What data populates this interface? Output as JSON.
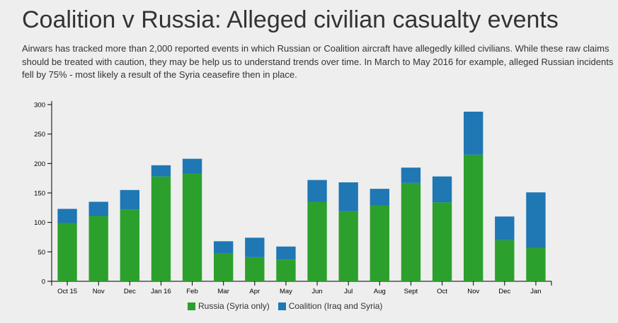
{
  "title": "Coalition v Russia: Alleged civilian casualty events",
  "subtitle": "Airwars has tracked more than 2,000 reported events in which Russian or Coalition aircraft have allegedly killed civilians. While these raw claims should be treated with caution, they may be help us to understand trends over time. In March to May 2016 for example, alleged Russian incidents fell by 75% - most likely a result of the Syria ceasefire then in place.",
  "colors": {
    "russia": "#2ca02c",
    "coalition": "#1f77b4"
  },
  "chart_data": {
    "type": "bar",
    "stacked": true,
    "categories": [
      "Oct 15",
      "Nov",
      "Dec",
      "Jan 16",
      "Feb",
      "Mar",
      "Apr",
      "May",
      "Jun",
      "Jul",
      "Aug",
      "Sept",
      "Oct",
      "Nov",
      "Dec",
      "Jan"
    ],
    "series": [
      {
        "name": "Russia (Syria only)",
        "values": [
          99,
          111,
          122,
          178,
          183,
          48,
          41,
          37,
          135,
          119,
          129,
          167,
          134,
          215,
          70,
          57
        ]
      },
      {
        "name": "Coalition (Iraq and Syria)",
        "values": [
          24,
          24,
          33,
          19,
          25,
          20,
          33,
          22,
          37,
          49,
          28,
          26,
          44,
          73,
          40,
          94
        ]
      }
    ],
    "ylim": [
      0,
      300
    ],
    "yticks": [
      0,
      50,
      100,
      150,
      200,
      250,
      300
    ],
    "xlabel": "",
    "ylabel": "",
    "legend": "bottom-center",
    "grid": false
  }
}
